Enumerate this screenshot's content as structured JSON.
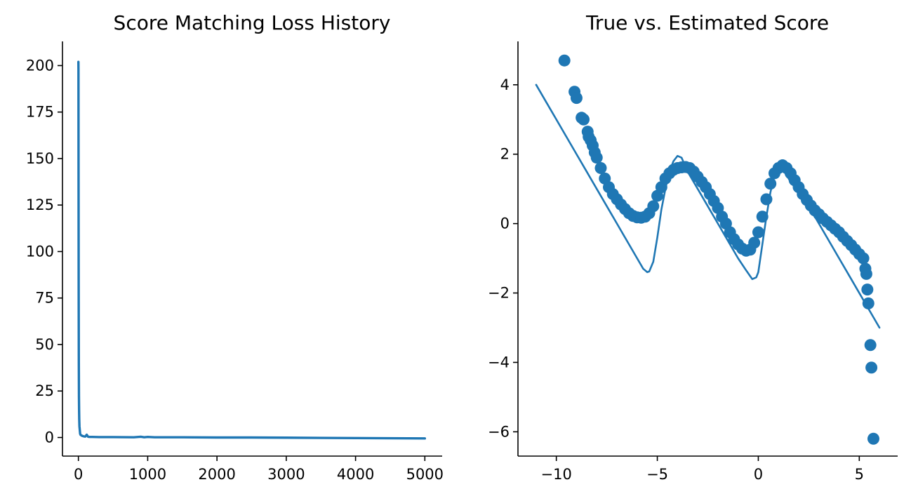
{
  "colors": {
    "series": "#1f77b4",
    "axis": "#000000",
    "background": "#ffffff"
  },
  "chart_data": [
    {
      "type": "line",
      "title": "Score Matching Loss History",
      "xlabel": "",
      "ylabel": "",
      "xlim": [
        -230,
        5250
      ],
      "ylim": [
        -10,
        213
      ],
      "xticks": [
        0,
        1000,
        2000,
        3000,
        4000,
        5000
      ],
      "xtick_labels": [
        "0",
        "1000",
        "2000",
        "3000",
        "4000",
        "5000"
      ],
      "yticks": [
        0,
        25,
        50,
        75,
        100,
        125,
        150,
        175,
        200
      ],
      "ytick_labels": [
        "0",
        "25",
        "50",
        "75",
        "100",
        "125",
        "150",
        "175",
        "200"
      ],
      "grid": false,
      "series": [
        {
          "x": [
            0,
            1,
            2,
            4,
            6,
            8,
            10,
            12,
            15,
            20,
            25,
            30,
            40,
            50,
            60,
            80,
            100,
            120,
            140,
            160,
            200,
            300,
            500,
            800,
            900,
            950,
            1000,
            1100,
            1500,
            2000,
            2500,
            3000,
            3500,
            4000,
            4500,
            5000
          ],
          "y": [
            202,
            198,
            150,
            80,
            40,
            22,
            15,
            10,
            6,
            4,
            2,
            1.5,
            1.2,
            1.0,
            0.8,
            0.6,
            0.5,
            1.5,
            0.4,
            0.3,
            0.3,
            0.2,
            0.2,
            0.1,
            0.4,
            0.1,
            0.3,
            0.1,
            0.1,
            0.0,
            0.0,
            -0.1,
            -0.2,
            -0.3,
            -0.4,
            -0.5
          ]
        }
      ]
    },
    {
      "type": "scatter",
      "title": "True vs. Estimated Score",
      "xlabel": "",
      "ylabel": "",
      "xlim": [
        -11.9,
        6.9
      ],
      "ylim": [
        -6.7,
        5.25
      ],
      "xticks": [
        -10,
        -5,
        0,
        5
      ],
      "xtick_labels": [
        "−10",
        "−5",
        "0",
        "5"
      ],
      "yticks": [
        -6,
        -4,
        -2,
        0,
        2,
        4
      ],
      "ytick_labels": [
        "−6",
        "−4",
        "−2",
        "0",
        "2",
        "4"
      ],
      "grid": false,
      "series": [
        {
          "kind": "line",
          "x": [
            -11.0,
            -10.5,
            -10.0,
            -9.5,
            -9.0,
            -8.5,
            -8.0,
            -7.5,
            -7.0,
            -6.5,
            -6.0,
            -5.7,
            -5.5,
            -5.4,
            -5.2,
            -5.0,
            -4.8,
            -4.6,
            -4.4,
            -4.2,
            -4.0,
            -3.8,
            -3.5,
            -3.0,
            -2.5,
            -2.0,
            -1.5,
            -1.0,
            -0.6,
            -0.3,
            -0.1,
            0.0,
            0.2,
            0.4,
            0.6,
            0.8,
            1.0,
            1.2,
            1.4,
            1.6,
            2.0,
            2.5,
            3.0,
            3.5,
            4.0,
            4.5,
            5.0,
            5.5,
            6.0
          ],
          "y": [
            4.0,
            3.5,
            3.0,
            2.5,
            2.0,
            1.5,
            1.0,
            0.5,
            0.0,
            -0.5,
            -1.0,
            -1.3,
            -1.4,
            -1.38,
            -1.1,
            -0.4,
            0.4,
            1.0,
            1.5,
            1.8,
            1.95,
            1.9,
            1.5,
            1.0,
            0.5,
            0.0,
            -0.5,
            -1.0,
            -1.35,
            -1.6,
            -1.55,
            -1.4,
            -0.6,
            0.2,
            0.9,
            1.4,
            1.6,
            1.55,
            1.4,
            1.2,
            0.9,
            0.5,
            0.0,
            -0.5,
            -1.0,
            -1.5,
            -2.0,
            -2.5,
            -3.0
          ]
        },
        {
          "kind": "scatter",
          "x": [
            -9.6,
            -9.1,
            -9.0,
            -8.75,
            -8.65,
            -8.45,
            -8.4,
            -8.3,
            -8.2,
            -8.1,
            -8.0,
            -7.8,
            -7.6,
            -7.4,
            -7.2,
            -7.0,
            -6.8,
            -6.6,
            -6.4,
            -6.2,
            -6.0,
            -5.8,
            -5.6,
            -5.4,
            -5.2,
            -5.0,
            -4.8,
            -4.6,
            -4.4,
            -4.2,
            -4.0,
            -3.8,
            -3.6,
            -3.4,
            -3.2,
            -3.0,
            -2.8,
            -2.6,
            -2.4,
            -2.2,
            -2.0,
            -1.8,
            -1.6,
            -1.4,
            -1.2,
            -1.0,
            -0.8,
            -0.6,
            -0.4,
            -0.2,
            0.0,
            0.2,
            0.4,
            0.6,
            0.8,
            1.0,
            1.2,
            1.4,
            1.6,
            1.8,
            2.0,
            2.2,
            2.4,
            2.6,
            2.8,
            3.0,
            3.2,
            3.4,
            3.6,
            3.8,
            4.0,
            4.2,
            4.4,
            4.6,
            4.8,
            5.0,
            5.2,
            5.3,
            5.35,
            5.4,
            5.45,
            5.55,
            5.6,
            5.7
          ],
          "y": [
            4.7,
            3.8,
            3.62,
            3.05,
            3.0,
            2.65,
            2.5,
            2.4,
            2.25,
            2.05,
            1.9,
            1.6,
            1.3,
            1.05,
            0.85,
            0.7,
            0.55,
            0.42,
            0.3,
            0.22,
            0.18,
            0.17,
            0.2,
            0.3,
            0.5,
            0.8,
            1.05,
            1.3,
            1.45,
            1.55,
            1.6,
            1.62,
            1.63,
            1.6,
            1.5,
            1.35,
            1.2,
            1.05,
            0.85,
            0.65,
            0.45,
            0.2,
            0.0,
            -0.25,
            -0.45,
            -0.6,
            -0.72,
            -0.78,
            -0.75,
            -0.55,
            -0.25,
            0.2,
            0.7,
            1.15,
            1.45,
            1.6,
            1.68,
            1.6,
            1.45,
            1.25,
            1.05,
            0.85,
            0.68,
            0.52,
            0.38,
            0.27,
            0.15,
            0.05,
            -0.05,
            -0.15,
            -0.25,
            -0.38,
            -0.5,
            -0.62,
            -0.75,
            -0.88,
            -1.0,
            -1.3,
            -1.45,
            -1.9,
            -2.3,
            -3.5,
            -4.15,
            -6.2
          ]
        }
      ]
    }
  ]
}
